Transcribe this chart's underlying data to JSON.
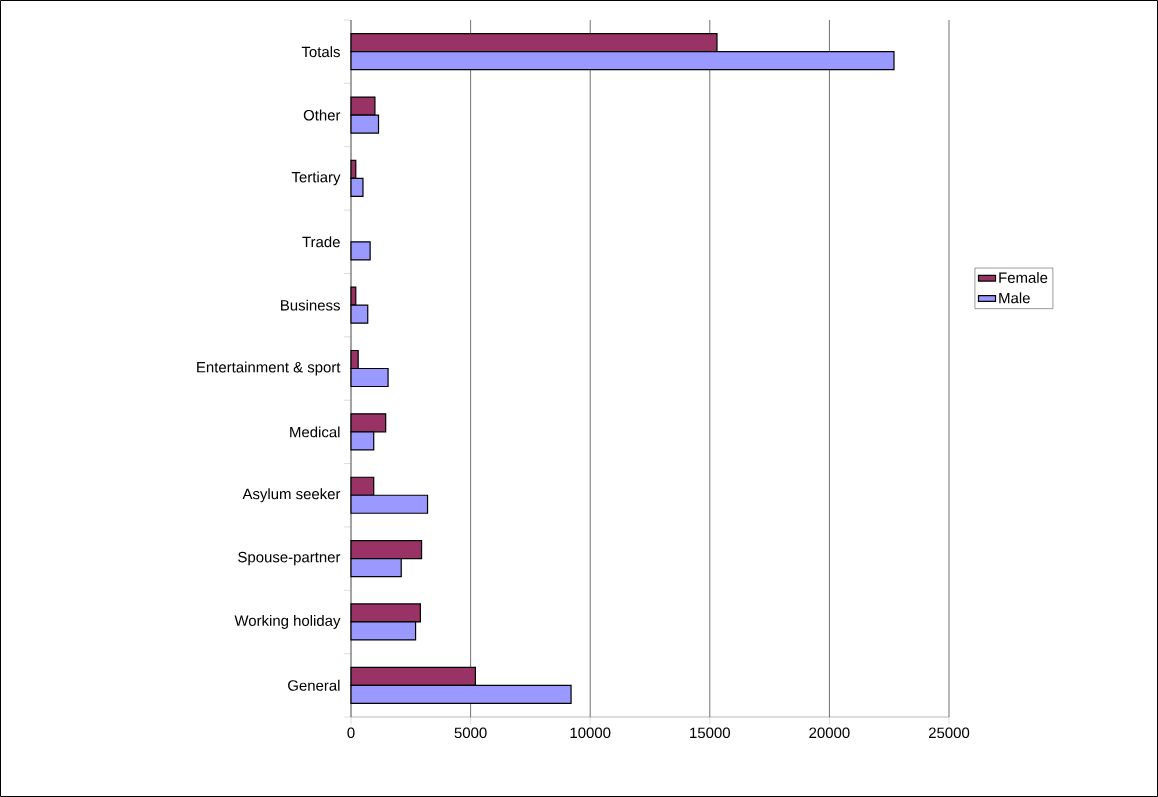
{
  "chart_data": {
    "type": "bar",
    "orientation": "horizontal",
    "categories": [
      "Totals",
      "Other",
      "Tertiary",
      "Trade",
      "Business",
      "Entertainment & sport",
      "Medical",
      "Asylum seeker",
      "Spouse-partner",
      "Working holiday",
      "General"
    ],
    "series": [
      {
        "name": "Female",
        "color": "#993366",
        "values": [
          15300,
          1000,
          200,
          null,
          200,
          300,
          1450,
          950,
          2950,
          2900,
          5200
        ]
      },
      {
        "name": "Male",
        "color": "#9999ff",
        "values": [
          22700,
          1150,
          500,
          800,
          700,
          1550,
          950,
          3200,
          2100,
          2700,
          9200
        ]
      }
    ],
    "xlim": [
      0,
      25000
    ],
    "xticks": [
      0,
      5000,
      10000,
      15000,
      20000,
      25000
    ],
    "grid": "x",
    "legend": "right"
  }
}
